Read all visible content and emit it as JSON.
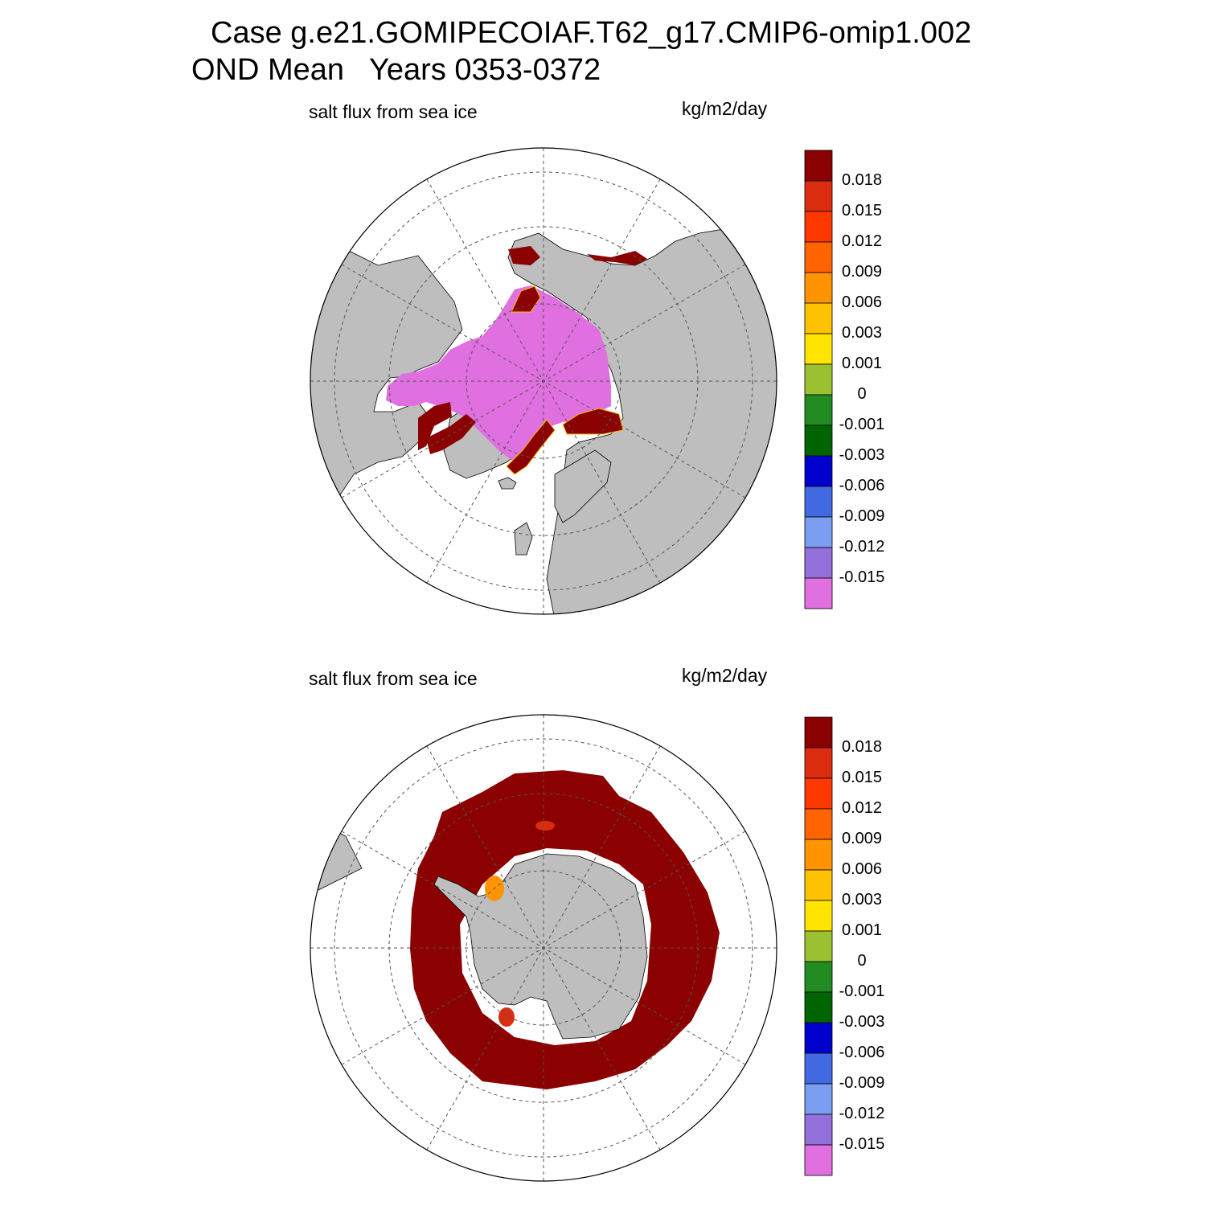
{
  "title_line1": "Case g.e21.GOMIPECOIAF.T62_g17.CMIP6-omip1.002",
  "title_line2": "OND Mean   Years 0353-0372",
  "panels": [
    {
      "field_label": "salt flux from sea ice",
      "units_label": "kg/m2/day",
      "hemisphere": "north"
    },
    {
      "field_label": "salt flux from sea ice",
      "units_label": "kg/m2/day",
      "hemisphere": "south"
    }
  ],
  "colorbar": {
    "labels": [
      "0.018",
      "0.015",
      "0.012",
      "0.009",
      "0.006",
      "0.003",
      "0.001",
      "0",
      "-0.001",
      "-0.003",
      "-0.006",
      "-0.009",
      "-0.012",
      "-0.015"
    ],
    "colors": [
      "#8b0000",
      "#dc2c10",
      "#ff3800",
      "#ff6400",
      "#ff9400",
      "#ffc200",
      "#ffe400",
      "#9bc032",
      "#228b22",
      "#006400",
      "#0000cd",
      "#4169e1",
      "#7b9ef0",
      "#9370db",
      "#e070e0"
    ]
  },
  "colors": {
    "land": "#bebebe",
    "ice_negative": "#e070e0",
    "ice_positive": "#8b0000",
    "ocean": "#ffffff"
  }
}
